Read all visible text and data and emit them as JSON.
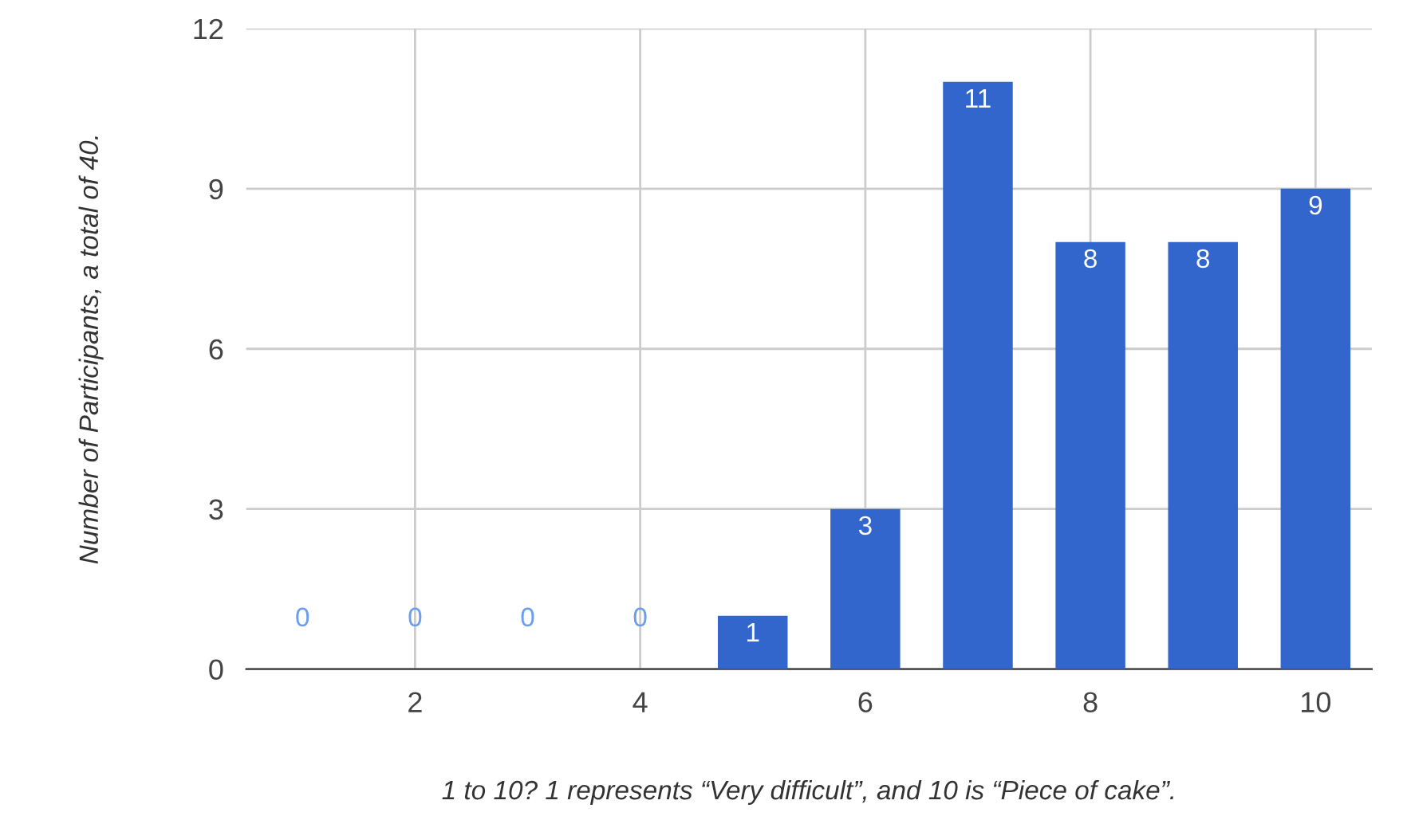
{
  "chart_data": {
    "type": "bar",
    "x": [
      1,
      2,
      3,
      4,
      5,
      6,
      7,
      8,
      9,
      10
    ],
    "values": [
      0,
      0,
      0,
      0,
      1,
      3,
      11,
      8,
      8,
      9
    ],
    "color": "#3366cc",
    "xlabel": "1 to 10? 1 represents “Very difficult”, and 10 is “Piece of cake”.",
    "ylabel": "Number of Participants, a total of 40.",
    "xlim": [
      0.5,
      10.5
    ],
    "xticks": [
      2,
      4,
      6,
      8,
      10
    ],
    "ylim": [
      0,
      12
    ],
    "yticks": [
      0,
      3,
      6,
      9,
      12
    ],
    "grid": true,
    "data_labels": true
  }
}
